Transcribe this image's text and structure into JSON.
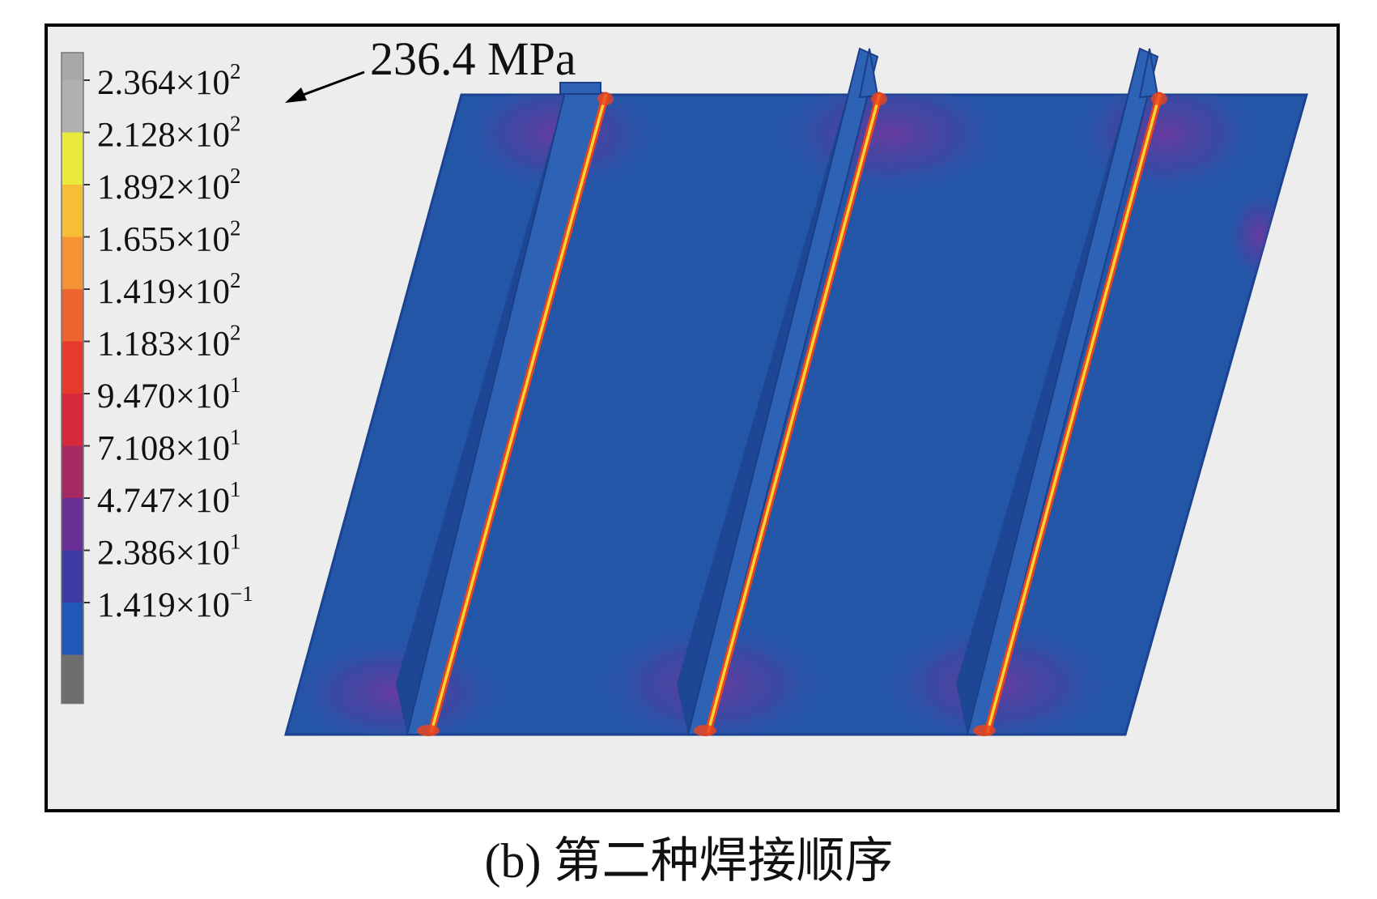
{
  "figure": {
    "annotation": "236.4 MPa",
    "caption": "(b) 第二种焊接顺序",
    "colors": {
      "plate": "#2456a8",
      "plate_edge": "#1b4390",
      "stiffener_face": "#2e62b4",
      "stiffener_shadow": "#1d4694",
      "weld_core": "#f4d43c",
      "weld_edge": "#e8451f",
      "heat_zone": "#5a3c9c",
      "background": "#ededed"
    }
  },
  "legend": {
    "items": [
      {
        "mantissa": "2.364",
        "times": "×10",
        "exp": "2",
        "color": "#b0b0b0"
      },
      {
        "mantissa": "2.128",
        "times": "×10",
        "exp": "2",
        "color": "#eaea3c"
      },
      {
        "mantissa": "1.892",
        "times": "×10",
        "exp": "2",
        "color": "#f6be36"
      },
      {
        "mantissa": "1.655",
        "times": "×10",
        "exp": "2",
        "color": "#f59234"
      },
      {
        "mantissa": "1.419",
        "times": "×10",
        "exp": "2",
        "color": "#ee6430"
      },
      {
        "mantissa": "1.183",
        "times": "×10",
        "exp": "2",
        "color": "#e63a2e"
      },
      {
        "mantissa": "9.470",
        "times": "×10",
        "exp": "1",
        "color": "#d42a3c"
      },
      {
        "mantissa": "7.108",
        "times": "×10",
        "exp": "1",
        "color": "#a62a62"
      },
      {
        "mantissa": "4.747",
        "times": "×10",
        "exp": "1",
        "color": "#6a2f94"
      },
      {
        "mantissa": "2.386",
        "times": "×10",
        "exp": "1",
        "color": "#3c3ca4"
      },
      {
        "mantissa": "1.419",
        "times": "×10",
        "exp": "−1",
        "color": "#1f58b8"
      }
    ],
    "top_cap_color": "#a8a8a8",
    "bottom_cap_color": "#6e6e6e"
  }
}
